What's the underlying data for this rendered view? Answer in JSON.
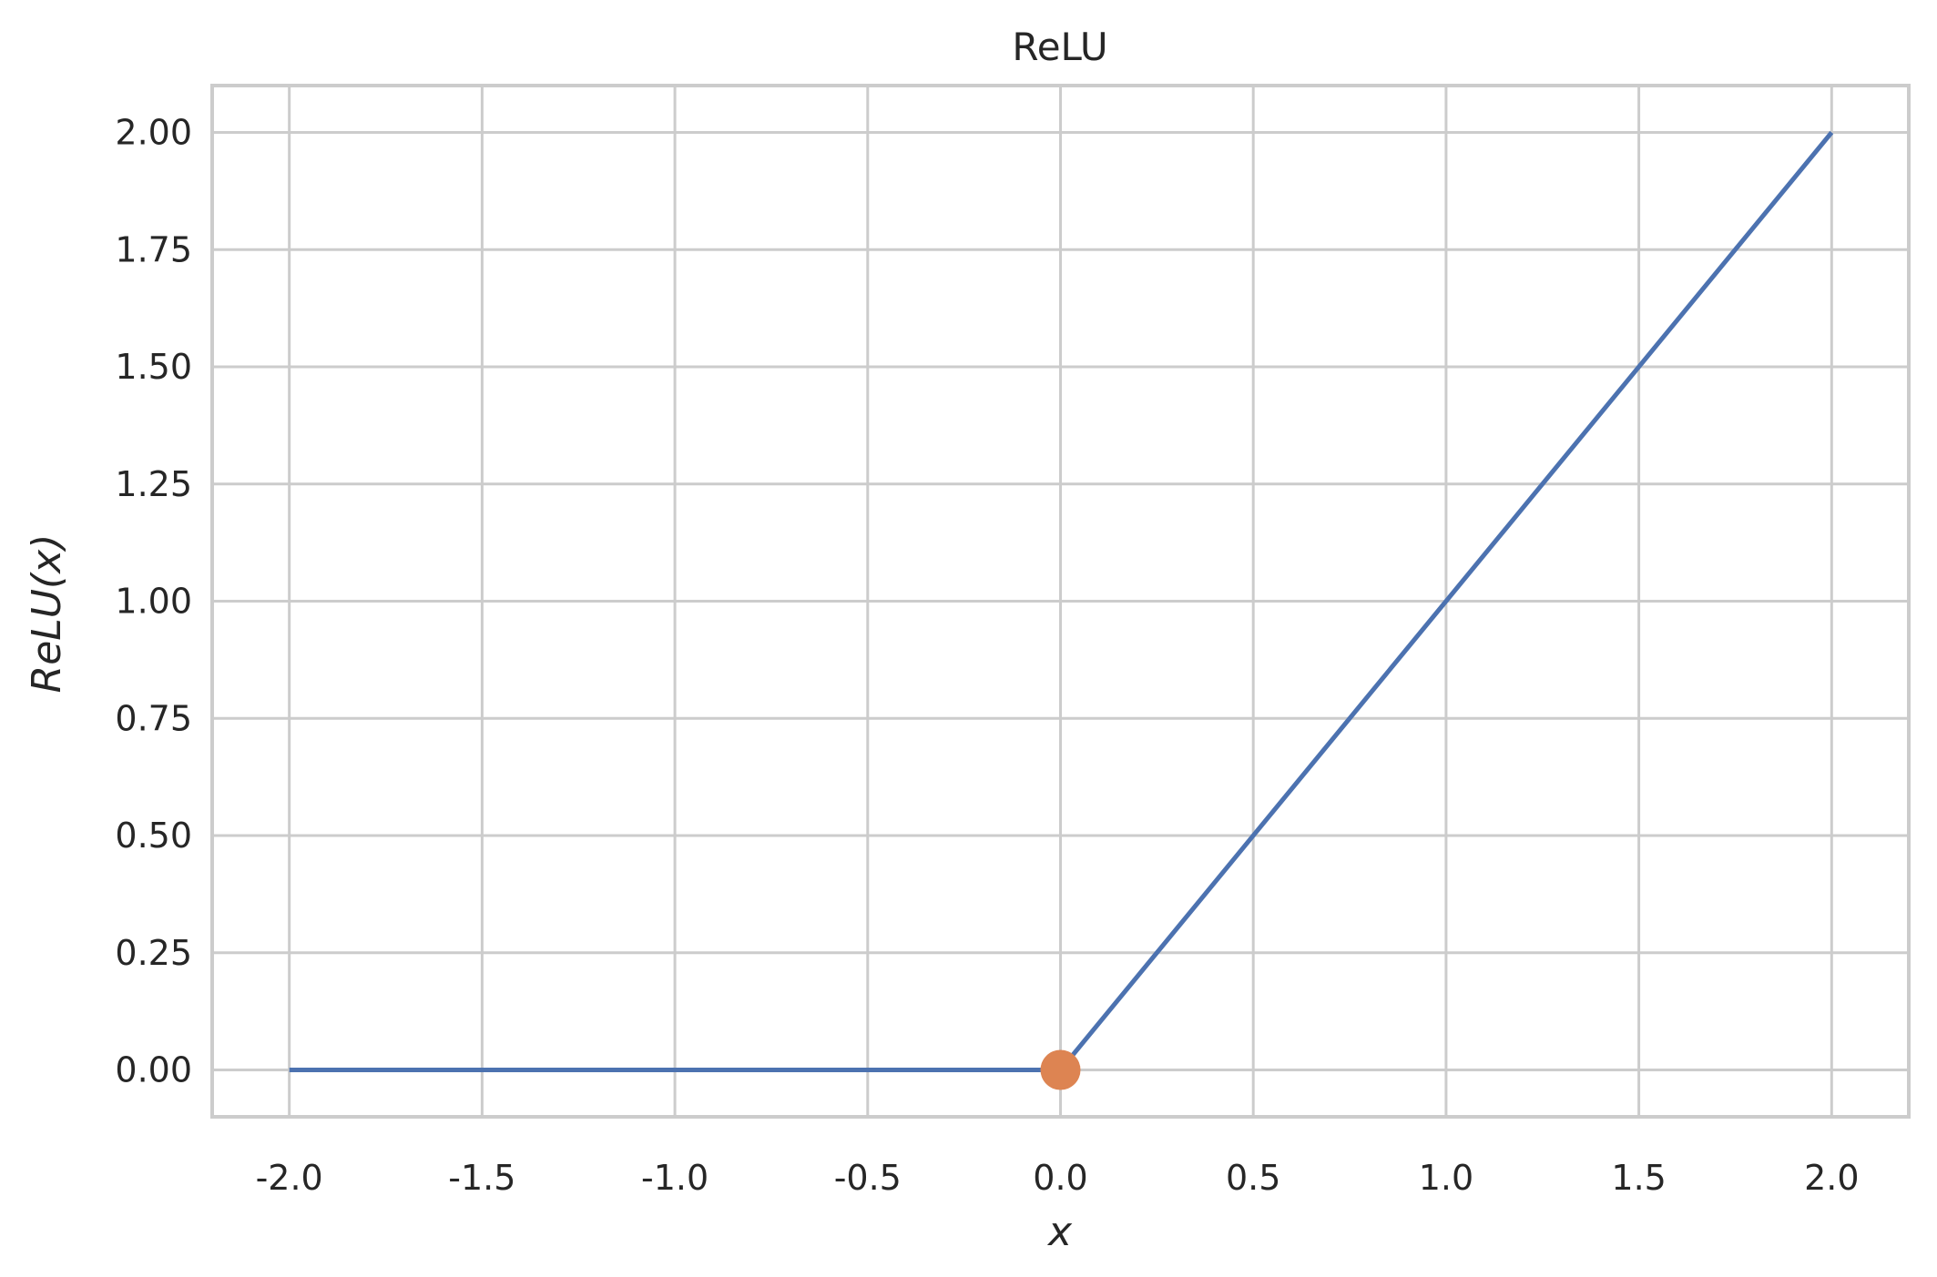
{
  "chart_data": {
    "type": "line",
    "title": "ReLU",
    "xlabel": "x",
    "ylabel": "ReLU(x)",
    "xlim": [
      -2.2,
      2.2
    ],
    "ylim": [
      -0.1,
      2.1
    ],
    "x_ticks": [
      -2.0,
      -1.5,
      -1.0,
      -0.5,
      0.0,
      0.5,
      1.0,
      1.5,
      2.0
    ],
    "x_tick_labels": [
      "-2.0",
      "-1.5",
      "-1.0",
      "-0.5",
      "0.0",
      "0.5",
      "1.0",
      "1.5",
      "2.0"
    ],
    "y_ticks": [
      0.0,
      0.25,
      0.5,
      0.75,
      1.0,
      1.25,
      1.5,
      1.75,
      2.0
    ],
    "y_tick_labels": [
      "0.00",
      "0.25",
      "0.50",
      "0.75",
      "1.00",
      "1.25",
      "1.50",
      "1.75",
      "2.00"
    ],
    "grid": true,
    "series": [
      {
        "x": [
          -2.0,
          0.0,
          2.0
        ],
        "y": [
          0.0,
          0.0,
          2.0
        ],
        "color": "#4c72b0"
      }
    ],
    "markers": [
      {
        "x": 0.0,
        "y": 0.0,
        "color": "#dd8452"
      }
    ]
  },
  "colors": {
    "grid": "#cccccc",
    "text": "#262626"
  }
}
